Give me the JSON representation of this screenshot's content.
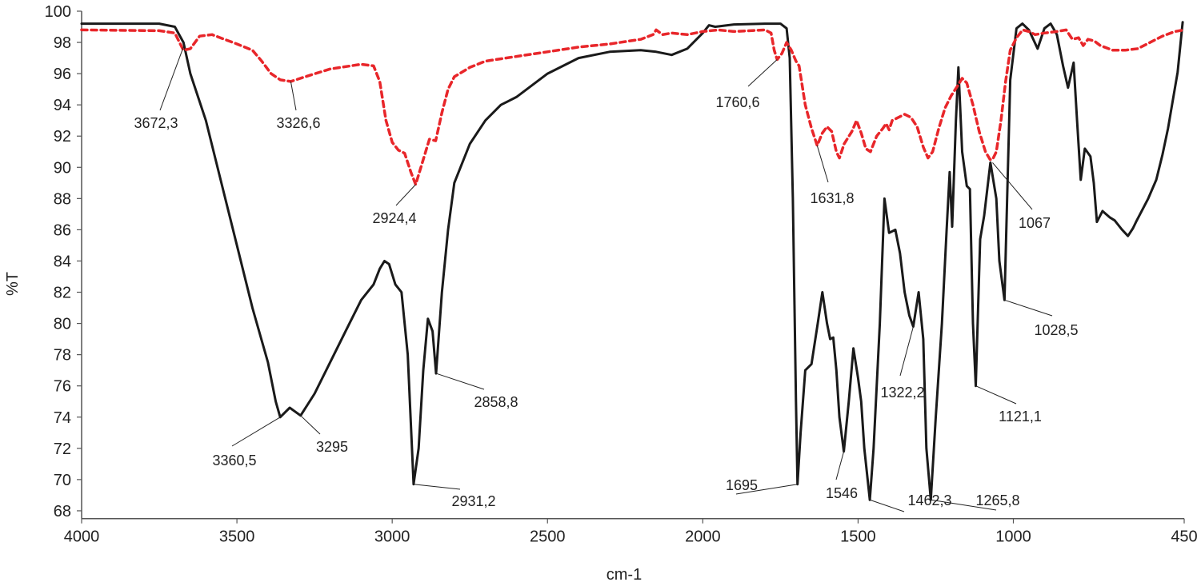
{
  "chart_data": {
    "type": "line",
    "title": "",
    "xlabel": "cm-1",
    "ylabel": "%T",
    "xlim": [
      4000,
      450
    ],
    "ylim": [
      67.5,
      100
    ],
    "x_reversed": true,
    "grid": false,
    "legend": "none",
    "x_ticks": [
      4000,
      3500,
      3000,
      2500,
      2000,
      1500,
      1000,
      450
    ],
    "y_ticks": [
      68,
      70,
      72,
      74,
      76,
      78,
      80,
      82,
      84,
      86,
      88,
      90,
      92,
      94,
      96,
      98,
      100
    ],
    "series": [
      {
        "color": "#1a1a1a",
        "style": "solid",
        "points": [
          [
            4000,
            99.2
          ],
          [
            3750,
            99.2
          ],
          [
            3700,
            99.0
          ],
          [
            3672,
            98.0
          ],
          [
            3650,
            96
          ],
          [
            3600,
            93
          ],
          [
            3550,
            89
          ],
          [
            3500,
            85
          ],
          [
            3450,
            81
          ],
          [
            3400,
            77.5
          ],
          [
            3375,
            75
          ],
          [
            3360.5,
            74.0
          ],
          [
            3330,
            74.6
          ],
          [
            3295,
            74.1
          ],
          [
            3250,
            75.5
          ],
          [
            3200,
            77.5
          ],
          [
            3150,
            79.5
          ],
          [
            3100,
            81.5
          ],
          [
            3060,
            82.5
          ],
          [
            3040,
            83.5
          ],
          [
            3025,
            84
          ],
          [
            3010,
            83.8
          ],
          [
            2990,
            82.5
          ],
          [
            2970,
            82
          ],
          [
            2950,
            78
          ],
          [
            2931.2,
            69.7
          ],
          [
            2915,
            72
          ],
          [
            2900,
            77
          ],
          [
            2885,
            80.3
          ],
          [
            2870,
            79.5
          ],
          [
            2858.8,
            76.8
          ],
          [
            2840,
            82
          ],
          [
            2820,
            86
          ],
          [
            2800,
            89
          ],
          [
            2750,
            91.5
          ],
          [
            2700,
            93
          ],
          [
            2650,
            94
          ],
          [
            2600,
            94.5
          ],
          [
            2500,
            96
          ],
          [
            2400,
            97
          ],
          [
            2300,
            97.4
          ],
          [
            2200,
            97.5
          ],
          [
            2150,
            97.4
          ],
          [
            2100,
            97.2
          ],
          [
            2050,
            97.6
          ],
          [
            2000,
            98.6
          ],
          [
            1980,
            99.1
          ],
          [
            1960,
            99
          ],
          [
            1900,
            99.15
          ],
          [
            1800,
            99.2
          ],
          [
            1750,
            99.2
          ],
          [
            1730,
            98.9
          ],
          [
            1720,
            97
          ],
          [
            1710,
            88
          ],
          [
            1700,
            75
          ],
          [
            1695,
            69.7
          ],
          [
            1685,
            73
          ],
          [
            1670,
            77
          ],
          [
            1650,
            77.4
          ],
          [
            1630,
            80
          ],
          [
            1615,
            82
          ],
          [
            1600,
            80
          ],
          [
            1590,
            79
          ],
          [
            1580,
            79.1
          ],
          [
            1570,
            77
          ],
          [
            1560,
            74
          ],
          [
            1546,
            71.8
          ],
          [
            1530,
            75
          ],
          [
            1515,
            78.4
          ],
          [
            1500,
            76.5
          ],
          [
            1490,
            75
          ],
          [
            1480,
            72
          ],
          [
            1462.3,
            68.7
          ],
          [
            1450,
            72
          ],
          [
            1430,
            80
          ],
          [
            1415,
            88
          ],
          [
            1400,
            85.8
          ],
          [
            1380,
            86
          ],
          [
            1365,
            84.5
          ],
          [
            1350,
            82
          ],
          [
            1335,
            80.5
          ],
          [
            1322.2,
            79.8
          ],
          [
            1305,
            82
          ],
          [
            1290,
            79
          ],
          [
            1280,
            72
          ],
          [
            1265.8,
            68.7
          ],
          [
            1250,
            74
          ],
          [
            1230,
            80
          ],
          [
            1215,
            86
          ],
          [
            1205,
            89.7
          ],
          [
            1197,
            86.2
          ],
          [
            1185,
            93
          ],
          [
            1177,
            96.4
          ],
          [
            1165,
            91
          ],
          [
            1150,
            88.8
          ],
          [
            1140,
            88.6
          ],
          [
            1130,
            80
          ],
          [
            1121.1,
            76
          ],
          [
            1107,
            85.4
          ],
          [
            1094,
            86.9
          ],
          [
            1074,
            90.3
          ],
          [
            1055,
            88
          ],
          [
            1045,
            84
          ],
          [
            1028.5,
            81.5
          ],
          [
            1010,
            95.6
          ],
          [
            990,
            98.9
          ],
          [
            971,
            99.2
          ],
          [
            950,
            98.8
          ],
          [
            922,
            97.6
          ],
          [
            900,
            98.9
          ],
          [
            880,
            99.2
          ],
          [
            860,
            98.5
          ],
          [
            840,
            96.5
          ],
          [
            824,
            95.1
          ],
          [
            806,
            96.7
          ],
          [
            795,
            93
          ],
          [
            783,
            89.2
          ],
          [
            770,
            91.2
          ],
          [
            752,
            90.7
          ],
          [
            741,
            89
          ],
          [
            731,
            86.5
          ],
          [
            713,
            87.2
          ],
          [
            690,
            86.8
          ],
          [
            674,
            86.6
          ],
          [
            650,
            86
          ],
          [
            631,
            85.6
          ],
          [
            615,
            86.1
          ],
          [
            605,
            86.5
          ],
          [
            566,
            88
          ],
          [
            540,
            89.2
          ],
          [
            520,
            90.8
          ],
          [
            502,
            92.5
          ],
          [
            471,
            96.1
          ],
          [
            455,
            99.3
          ]
        ]
      },
      {
        "color": "#e8262a",
        "style": "dashed",
        "points": [
          [
            4000,
            98.8
          ],
          [
            3750,
            98.75
          ],
          [
            3700,
            98.6
          ],
          [
            3672.3,
            97.5
          ],
          [
            3650,
            97.6
          ],
          [
            3620,
            98.4
          ],
          [
            3580,
            98.5
          ],
          [
            3540,
            98.2
          ],
          [
            3500,
            97.9
          ],
          [
            3450,
            97.5
          ],
          [
            3420,
            96.8
          ],
          [
            3390,
            96
          ],
          [
            3360,
            95.6
          ],
          [
            3326.6,
            95.5
          ],
          [
            3280,
            95.8
          ],
          [
            3200,
            96.3
          ],
          [
            3100,
            96.6
          ],
          [
            3060,
            96.5
          ],
          [
            3040,
            95.5
          ],
          [
            3020,
            93
          ],
          [
            3000,
            91.6
          ],
          [
            2980,
            91.1
          ],
          [
            2960,
            90.9
          ],
          [
            2940,
            89.7
          ],
          [
            2924.4,
            88.9
          ],
          [
            2900,
            90.5
          ],
          [
            2880,
            91.8
          ],
          [
            2860,
            91.7
          ],
          [
            2840,
            93.5
          ],
          [
            2820,
            95
          ],
          [
            2800,
            95.8
          ],
          [
            2750,
            96.4
          ],
          [
            2700,
            96.8
          ],
          [
            2600,
            97.1
          ],
          [
            2500,
            97.4
          ],
          [
            2400,
            97.7
          ],
          [
            2300,
            97.9
          ],
          [
            2200,
            98.2
          ],
          [
            2160,
            98.5
          ],
          [
            2150,
            98.8
          ],
          [
            2130,
            98.5
          ],
          [
            2100,
            98.6
          ],
          [
            2050,
            98.5
          ],
          [
            2000,
            98.7
          ],
          [
            1950,
            98.8
          ],
          [
            1900,
            98.7
          ],
          [
            1800,
            98.8
          ],
          [
            1780,
            98.6
          ],
          [
            1770,
            97.5
          ],
          [
            1760.6,
            96.9
          ],
          [
            1745,
            97.3
          ],
          [
            1730,
            98.0
          ],
          [
            1715,
            97.5
          ],
          [
            1700,
            96.8
          ],
          [
            1690,
            96.5
          ],
          [
            1670,
            94
          ],
          [
            1650,
            92.5
          ],
          [
            1631.8,
            91.4
          ],
          [
            1615,
            92.2
          ],
          [
            1600,
            92.6
          ],
          [
            1585,
            92.3
          ],
          [
            1570,
            91
          ],
          [
            1560,
            90.6
          ],
          [
            1545,
            91.5
          ],
          [
            1520,
            92.3
          ],
          [
            1505,
            93
          ],
          [
            1490,
            92.2
          ],
          [
            1475,
            91.2
          ],
          [
            1460,
            91
          ],
          [
            1440,
            92
          ],
          [
            1420,
            92.5
          ],
          [
            1410,
            92.8
          ],
          [
            1400,
            92.4
          ],
          [
            1390,
            93
          ],
          [
            1370,
            93.2
          ],
          [
            1350,
            93.4
          ],
          [
            1330,
            93.2
          ],
          [
            1310,
            92.6
          ],
          [
            1290,
            91.3
          ],
          [
            1275,
            90.6
          ],
          [
            1260,
            91
          ],
          [
            1240,
            92.5
          ],
          [
            1220,
            93.8
          ],
          [
            1200,
            94.6
          ],
          [
            1180,
            95.2
          ],
          [
            1165,
            95.7
          ],
          [
            1150,
            95.4
          ],
          [
            1130,
            94
          ],
          [
            1110,
            92.3
          ],
          [
            1090,
            91
          ],
          [
            1075,
            90.5
          ],
          [
            1067,
            90.5
          ],
          [
            1055,
            91
          ],
          [
            1040,
            93
          ],
          [
            1025,
            95.5
          ],
          [
            1010,
            97.5
          ],
          [
            990,
            98.3
          ],
          [
            970,
            98.8
          ],
          [
            950,
            98.7
          ],
          [
            930,
            98.5
          ],
          [
            900,
            98.6
          ],
          [
            860,
            98.7
          ],
          [
            830,
            98.8
          ],
          [
            810,
            98.2
          ],
          [
            790,
            98.3
          ],
          [
            775,
            97.8
          ],
          [
            760,
            98.2
          ],
          [
            740,
            98.1
          ],
          [
            720,
            97.8
          ],
          [
            680,
            97.5
          ],
          [
            640,
            97.5
          ],
          [
            600,
            97.6
          ],
          [
            560,
            98.0
          ],
          [
            520,
            98.4
          ],
          [
            480,
            98.7
          ],
          [
            450,
            98.8
          ]
        ]
      }
    ],
    "annotations": [
      {
        "text": "3672,3",
        "x": 3672.3,
        "y": 97.7
      },
      {
        "text": "3326,6",
        "x": 3326.6,
        "y": 95.5
      },
      {
        "text": "2924,4",
        "x": 2924.4,
        "y": 88.9
      },
      {
        "text": "3360,5",
        "x": 3360.5,
        "y": 74.0
      },
      {
        "text": "3295",
        "x": 3295,
        "y": 74.1
      },
      {
        "text": "2931,2",
        "x": 2931.2,
        "y": 69.7
      },
      {
        "text": "2858,8",
        "x": 2858.8,
        "y": 76.8
      },
      {
        "text": "1760,6",
        "x": 1760.6,
        "y": 96.9
      },
      {
        "text": "1631,8",
        "x": 1631.8,
        "y": 91.4
      },
      {
        "text": "1695",
        "x": 1695,
        "y": 69.7
      },
      {
        "text": "1546",
        "x": 1546,
        "y": 71.8
      },
      {
        "text": "1462,3",
        "x": 1462.3,
        "y": 68.7
      },
      {
        "text": "1265,8",
        "x": 1265.8,
        "y": 68.7
      },
      {
        "text": "1322,2",
        "x": 1322.2,
        "y": 79.8
      },
      {
        "text": "1121,1",
        "x": 1121.1,
        "y": 76.0
      },
      {
        "text": "1067",
        "x": 1067,
        "y": 90.3
      },
      {
        "text": "1028,5",
        "x": 1028.5,
        "y": 81.5
      }
    ]
  }
}
